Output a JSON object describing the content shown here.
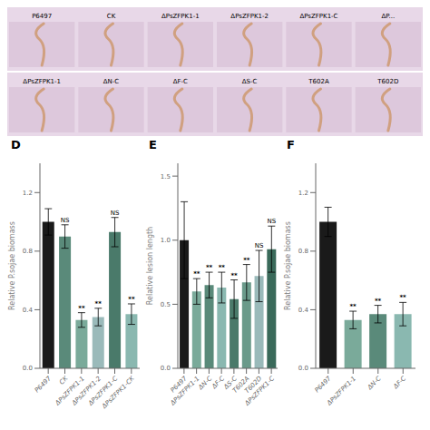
{
  "chart_data": [
    {
      "type": "image",
      "categories": [
        "P6497",
        "CK",
        "ΔPsZFPK1-1",
        "ΔPsZFPK1-2",
        "ΔPsZFPK1-C",
        "ΔP..."
      ]
    },
    {
      "type": "image",
      "categories": [
        "ΔPsZFPK1-1",
        "ΔN-C",
        "ΔF-C",
        "ΔS-C",
        "T602A",
        "T602D"
      ]
    },
    {
      "type": "bar",
      "title": "D",
      "ylabel": "Relative P.sojae biomass",
      "ylim": [
        0,
        1.4
      ],
      "yticks": [
        {
          "value": 0,
          "label": "0.0"
        },
        0.4,
        0.8,
        1.2
      ],
      "categories": [
        "P6497",
        "CK",
        "ΔPsZFPK1-1",
        "ΔPsZFPK1-2",
        "ΔPsZFPK1-C",
        "ΔPsZFPK1-CK"
      ],
      "values": [
        1.0,
        0.9,
        0.33,
        0.35,
        0.93,
        0.37
      ],
      "errors": [
        0.09,
        0.08,
        0.05,
        0.06,
        0.1,
        0.07
      ],
      "colors": [
        "#1a1a1a",
        "#5a8a7a",
        "#7aaa9a",
        "#9ababa",
        "#4a7a6a",
        "#8ab8b0"
      ],
      "annotations": [
        null,
        "NS",
        "**",
        "**",
        "NS",
        "**"
      ]
    },
    {
      "type": "bar",
      "title": "E",
      "ylabel": "Relative lesion length",
      "ylim": [
        0,
        1.6
      ],
      "yticks": [
        {
          "value": 0,
          "label": "0.0"
        },
        0.5,
        {
          "value": 1,
          "label": "1.0"
        },
        1.5
      ],
      "categories": [
        "P6497",
        "ΔPsZFPK1-1",
        "ΔN-C",
        "ΔF-C",
        "ΔS-C",
        "T602A",
        "T602D",
        "ΔPsZFPK1-C"
      ],
      "values": [
        1.0,
        0.6,
        0.65,
        0.63,
        0.54,
        0.67,
        0.72,
        0.93
      ],
      "errors": [
        0.3,
        0.1,
        0.1,
        0.12,
        0.15,
        0.14,
        0.2,
        0.18
      ],
      "colors": [
        "#1a1a1a",
        "#7aaa9a",
        "#5a8a7a",
        "#8ab8b0",
        "#4a7a6a",
        "#6a9a8a",
        "#9ababa",
        "#3a6a5a"
      ],
      "annotations": [
        null,
        "**",
        "**",
        "**",
        "**",
        "**",
        "NS",
        "NS"
      ]
    },
    {
      "type": "bar",
      "title": "F",
      "ylabel": "Relative P.sojae biomass",
      "ylim": [
        0,
        1.4
      ],
      "yticks": [
        {
          "value": 0,
          "label": "0.0"
        },
        0.4,
        0.8,
        1.2
      ],
      "categories": [
        "P6497",
        "ΔPsZFPK1-1",
        "ΔN-C",
        "ΔF-C"
      ],
      "values": [
        1.0,
        0.33,
        0.37,
        0.37
      ],
      "errors": [
        0.1,
        0.06,
        0.06,
        0.08
      ],
      "colors": [
        "#1a1a1a",
        "#7aaa9a",
        "#5a8a7a",
        "#8ab8b0"
      ],
      "annotations": [
        null,
        "**",
        "**",
        "**"
      ]
    }
  ]
}
